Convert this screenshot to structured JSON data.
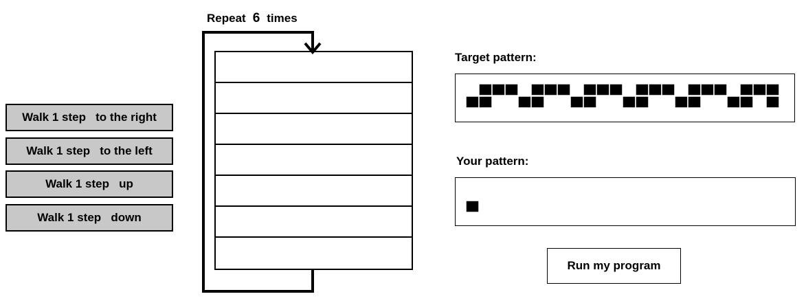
{
  "blocks": [
    {
      "label": "Walk 1 step   to the right"
    },
    {
      "label": "Walk 1 step   to the left"
    },
    {
      "label": "Walk 1 step   up"
    },
    {
      "label": "Walk 1 step   down"
    }
  ],
  "loop": {
    "prefix": "Repeat",
    "count": "6",
    "suffix": "times",
    "slot_count": 7
  },
  "target": {
    "label": "Target pattern:",
    "pattern": [
      "011101110111011101110111",
      "110011001100110011001101"
    ]
  },
  "yours": {
    "label": "Your pattern:",
    "pattern": [
      "1"
    ]
  },
  "run_button": {
    "label": "Run my program"
  },
  "colors": {
    "block_fill": "#c8c8c8",
    "cell_fill": "#000000"
  }
}
